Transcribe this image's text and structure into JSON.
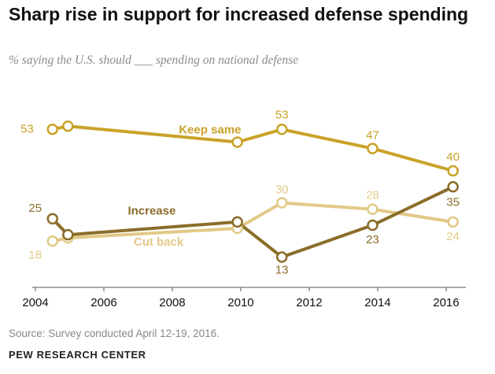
{
  "header": {
    "title": "Sharp rise in support for increased defense spending",
    "subtitle": "% saying the U.S. should ___ spending on national defense"
  },
  "footer": {
    "source": "Source: Survey conducted April 12-19, 2016.",
    "credit": "PEW RESEARCH CENTER"
  },
  "chart_data": {
    "type": "line",
    "title": "Sharp rise in support for increased defense spending",
    "subtitle": "% saying the U.S. should ___ spending on national defense",
    "xlabel": "",
    "ylabel": "",
    "xlim": [
      2004,
      2016.3
    ],
    "ylim": [
      5,
      58
    ],
    "x_ticks": [
      2004,
      2006,
      2008,
      2010,
      2012,
      2014,
      2016
    ],
    "grid": false,
    "legend": "inline labels",
    "series": [
      {
        "name": "Keep same",
        "color": "#c9a227",
        "x": [
          2004.5,
          2004.95,
          2009.9,
          2011.2,
          2013.85,
          2016.2
        ],
        "values": [
          53,
          54,
          49,
          53,
          47,
          40
        ],
        "markers": [
          true,
          true,
          true,
          true,
          true,
          true
        ],
        "data_labels": [
          "53",
          "",
          "",
          "53",
          "47",
          "40"
        ]
      },
      {
        "name": "Increase",
        "color": "#8b6d2a",
        "x": [
          2004.5,
          2004.95,
          2009.9,
          2011.2,
          2013.85,
          2016.2
        ],
        "values": [
          25,
          20,
          24,
          13,
          23,
          35
        ],
        "markers": [
          true,
          true,
          true,
          true,
          true,
          true
        ],
        "data_labels": [
          "25",
          "",
          "",
          "13",
          "23",
          "35"
        ]
      },
      {
        "name": "Cut back",
        "color": "#e2c987",
        "x": [
          2004.5,
          2004.95,
          2009.9,
          2011.2,
          2013.85,
          2016.2
        ],
        "values": [
          18,
          19,
          22,
          30,
          28,
          24
        ],
        "markers": [
          true,
          true,
          true,
          true,
          true,
          true
        ],
        "data_labels": [
          "18",
          "",
          "",
          "30",
          "28",
          "24"
        ]
      }
    ]
  }
}
